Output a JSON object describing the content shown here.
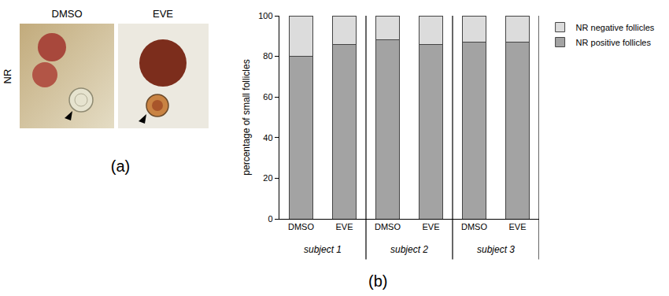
{
  "figure": {
    "panel_a": {
      "label": "(a)",
      "row_label": "NR",
      "columns": [
        "DMSO",
        "EVE"
      ]
    },
    "panel_b_label": "(b)"
  },
  "chart_data": {
    "type": "bar",
    "stacked": true,
    "categories": [
      "DMSO",
      "EVE",
      "DMSO",
      "EVE",
      "DMSO",
      "EVE"
    ],
    "groups": [
      "subject 1",
      "subject 2",
      "subject 3"
    ],
    "y_label": "percentage of small follicles",
    "series": [
      {
        "name": "NR positive follicles",
        "color": "#a3a3a3",
        "values": [
          80,
          86,
          88,
          86,
          87,
          87
        ]
      },
      {
        "name": "NR negative follicles",
        "color": "#dcdcdc",
        "values": [
          20,
          14,
          12,
          14,
          13,
          13
        ]
      }
    ],
    "ylim": [
      0,
      100
    ],
    "yticks": [
      0,
      20,
      40,
      60,
      80,
      100
    ],
    "grid": false,
    "legend": "upper right"
  }
}
